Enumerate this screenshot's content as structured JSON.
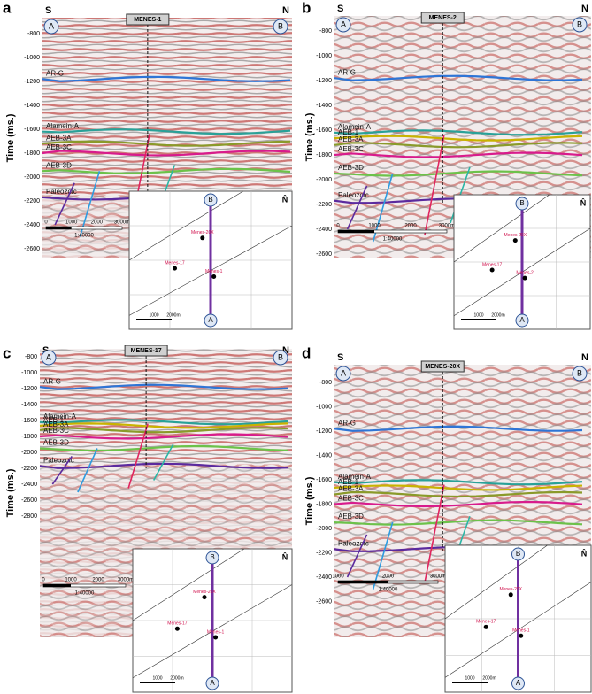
{
  "figure": {
    "panels": [
      {
        "label": "a",
        "well": "MENES-1",
        "south": "S",
        "north": "N",
        "start": "A",
        "end": "B",
        "axis_label": "Time (ms.)",
        "yticks": [
          -800,
          -1000,
          -1200,
          -1400,
          -1600,
          -1800,
          -2000,
          -2200,
          -2400,
          -2600
        ],
        "horizons": [
          "AR-G",
          "Alamein-A",
          "AEB-3A",
          "AEB-3C",
          "AEB-3D",
          "Paleozoic"
        ],
        "scale": [
          "0",
          "1000",
          "2000",
          "3000m"
        ],
        "ratio": "1:40000",
        "inset": {
          "top": "B",
          "bottom": "A",
          "north": "N̂",
          "wells": [
            "Menes-20X",
            "Menes-17",
            "Menes-1"
          ],
          "scale": [
            "1000",
            "2000m"
          ]
        }
      },
      {
        "label": "b",
        "well": "MENES-2",
        "south": "S",
        "north": "N",
        "start": "A",
        "end": "B",
        "axis_label": "Time (ms.)",
        "yticks": [
          -800,
          -1000,
          -1200,
          -1400,
          -1600,
          -1800,
          -2000,
          -2200,
          -2400,
          -2600
        ],
        "horizons": [
          "AR-G",
          "Alamein-A",
          "AEB-1",
          "AEB-3A",
          "AEB-3C",
          "AEB-3D",
          "Paleozoic"
        ],
        "scale": [
          "0",
          "1000",
          "2000",
          "3000m"
        ],
        "ratio": "1:40000",
        "inset": {
          "top": "B",
          "bottom": "A",
          "north": "N̂",
          "wells": [
            "Menes-20X",
            "Menes-17",
            "Menes-2"
          ],
          "scale": [
            "1000",
            "2000m"
          ]
        }
      },
      {
        "label": "c",
        "well": "MENES-17",
        "south": "S",
        "north": "N",
        "start": "A",
        "end": "B",
        "axis_label": "Time (ms.)",
        "yticks": [
          -800,
          -1000,
          -1200,
          -1400,
          -1600,
          -1800,
          -2000,
          -2200,
          -2400,
          -2600,
          -2800
        ],
        "horizons": [
          "AR-G",
          "Alamein-A",
          "AEB-1",
          "AEB-3A",
          "AEB-3C",
          "AEB-3D",
          "Paleozoic"
        ],
        "scale": [
          "0",
          "1000",
          "2000",
          "3000m"
        ],
        "ratio": "1:40000",
        "inset": {
          "top": "B",
          "bottom": "A",
          "north": "N̂",
          "wells": [
            "Menes-20X",
            "Menes-17",
            "Menes-1"
          ],
          "scale": [
            "1000",
            "2000m"
          ]
        }
      },
      {
        "label": "d",
        "well": "MENES-20X",
        "south": "S",
        "north": "N",
        "start": "A",
        "end": "B",
        "axis_label": "Time (ms.)",
        "yticks": [
          -800,
          -1000,
          -1200,
          -1400,
          -1600,
          -1800,
          -2000,
          -2200,
          -2400,
          -2600
        ],
        "horizons": [
          "AR-G",
          "Alamein-A",
          "AEB-1",
          "AEB-3A",
          "AEB-3C",
          "AEB-3D",
          "Paleozoic"
        ],
        "scale": [
          "1000",
          "2000",
          "3000m"
        ],
        "ratio": "1:40000",
        "inset": {
          "top": "B",
          "bottom": "A",
          "north": "N̂",
          "wells": [
            "Menes-20X",
            "Menes-17",
            "Menes-1"
          ],
          "scale": [
            "1000",
            "2000m"
          ]
        }
      }
    ]
  }
}
